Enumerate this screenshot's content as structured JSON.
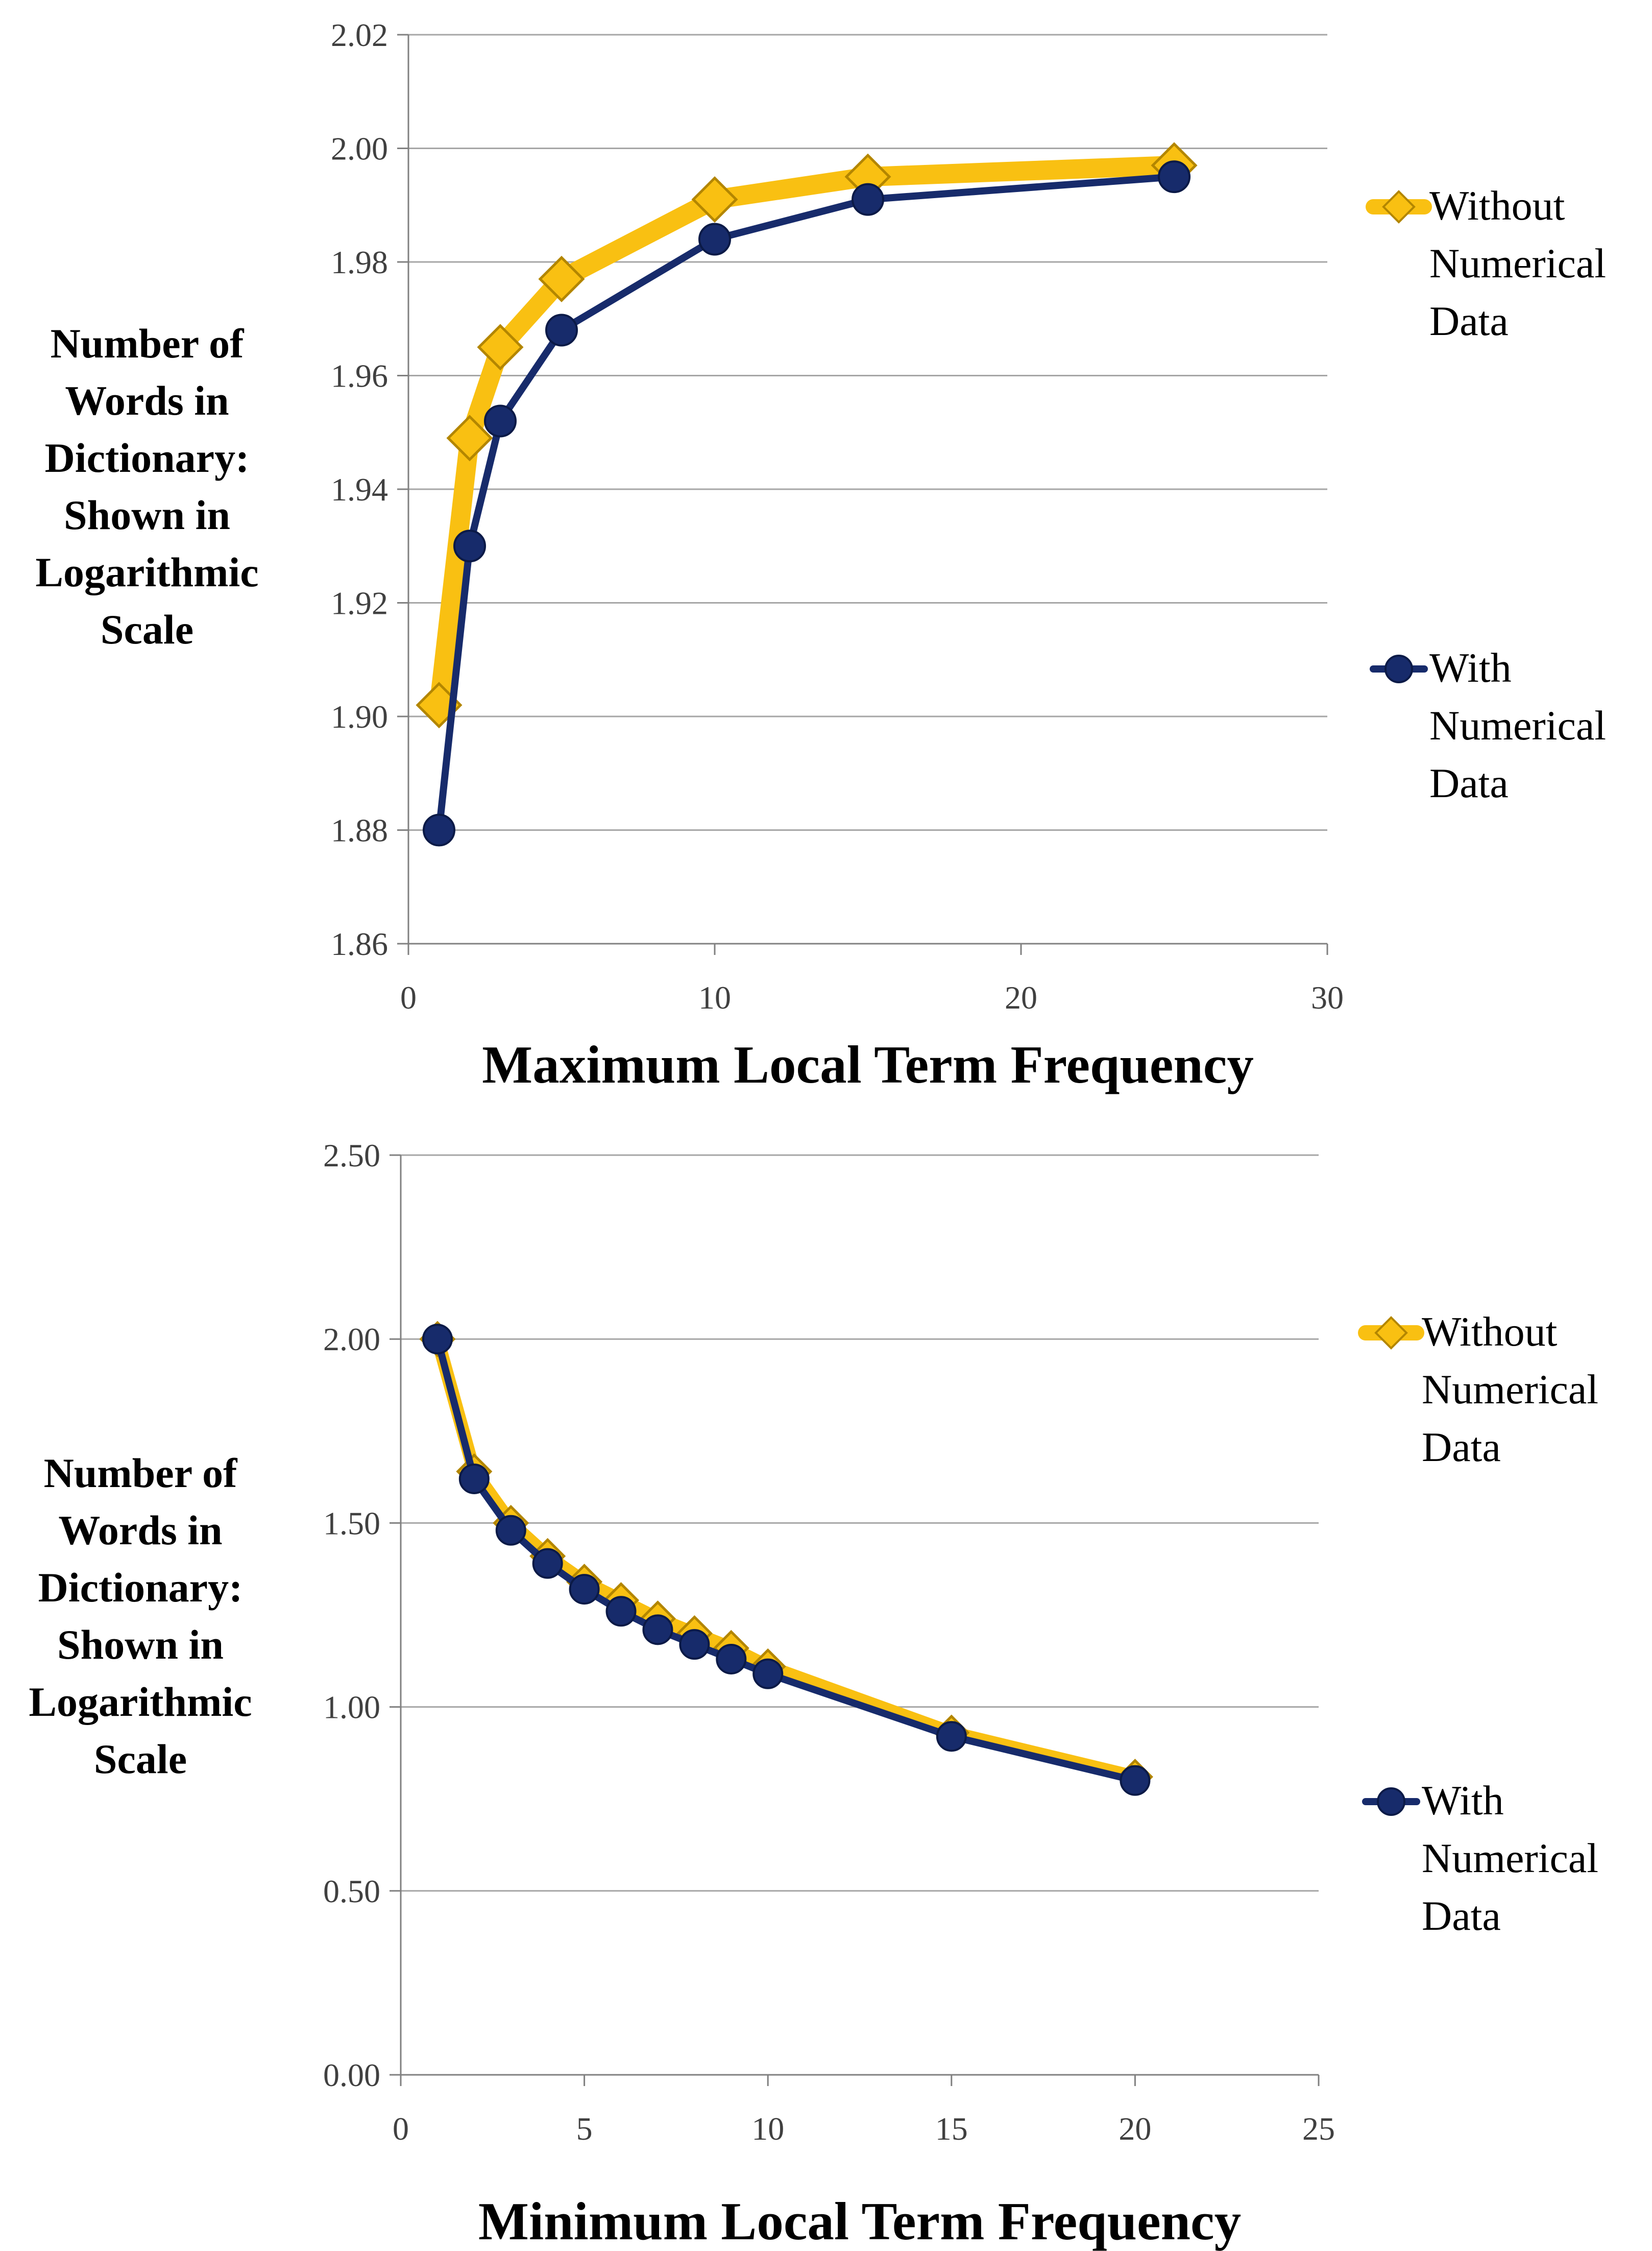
{
  "colors": {
    "without": "#F9C012",
    "without_marker_stroke": "#B38600",
    "with": "#172B6B",
    "grid": "#A6A6A6",
    "axis": "#808080"
  },
  "chart_data": [
    {
      "type": "line",
      "title": "",
      "xlabel": "Maximum Local Term Frequency",
      "ylabel": [
        "Number of",
        "Words in",
        "Dictionary:",
        "Shown in",
        "Logarithmic",
        "Scale"
      ],
      "xlim": [
        0,
        30
      ],
      "ylim": [
        1.86,
        2.02
      ],
      "xticks": [
        0,
        10,
        20,
        30
      ],
      "yticks": [
        1.86,
        1.88,
        1.9,
        1.92,
        1.94,
        1.96,
        1.98,
        2.0,
        2.02
      ],
      "xtick_labels": [
        "0",
        "10",
        "20",
        "30"
      ],
      "ytick_labels": [
        "1.86",
        "1.88",
        "1.90",
        "1.92",
        "1.94",
        "1.96",
        "1.98",
        "2.00",
        "2.02"
      ],
      "series": [
        {
          "name": "Without Numerical Data",
          "legend": [
            "Without",
            "Numerical",
            "Data"
          ],
          "marker": "diamond",
          "x": [
            1,
            2,
            3,
            5,
            10,
            15,
            25
          ],
          "values": [
            1.902,
            1.949,
            1.965,
            1.977,
            1.991,
            1.995,
            1.997
          ]
        },
        {
          "name": "With Numerical Data",
          "legend": [
            "With",
            "Numerical",
            "Data"
          ],
          "marker": "circle",
          "x": [
            1,
            2,
            3,
            5,
            10,
            15,
            25
          ],
          "values": [
            1.88,
            1.93,
            1.952,
            1.968,
            1.984,
            1.991,
            1.995
          ]
        }
      ],
      "legend_position": "right"
    },
    {
      "type": "line",
      "title": "",
      "xlabel": "Minimum Local Term Frequency",
      "ylabel": [
        "Number of",
        "Words in",
        "Dictionary:",
        "Shown in",
        "Logarithmic",
        "Scale"
      ],
      "xlim": [
        0,
        25
      ],
      "ylim": [
        0,
        2.5
      ],
      "xticks": [
        0,
        5,
        10,
        15,
        20,
        25
      ],
      "yticks": [
        0,
        0.5,
        1.0,
        1.5,
        2.0,
        2.5
      ],
      "xtick_labels": [
        "0",
        "5",
        "10",
        "15",
        "20",
        "25"
      ],
      "ytick_labels": [
        "0.00",
        "0.50",
        "1.00",
        "1.50",
        "2.00",
        "2.50"
      ],
      "series": [
        {
          "name": "Without Numerical Data",
          "legend": [
            "Without",
            "Numerical",
            "Data"
          ],
          "marker": "diamond",
          "x": [
            1,
            2,
            3,
            4,
            5,
            6,
            7,
            8,
            9,
            10,
            15,
            20
          ],
          "values": [
            2.0,
            1.64,
            1.5,
            1.41,
            1.34,
            1.29,
            1.24,
            1.2,
            1.16,
            1.11,
            0.93,
            0.81
          ]
        },
        {
          "name": "With Numerical Data",
          "legend": [
            "With",
            "Numerical",
            "Data"
          ],
          "marker": "circle",
          "x": [
            1,
            2,
            3,
            4,
            5,
            6,
            7,
            8,
            9,
            10,
            15,
            20
          ],
          "values": [
            2.0,
            1.62,
            1.48,
            1.39,
            1.32,
            1.26,
            1.21,
            1.17,
            1.13,
            1.09,
            0.92,
            0.8
          ]
        }
      ],
      "legend_position": "right"
    }
  ]
}
